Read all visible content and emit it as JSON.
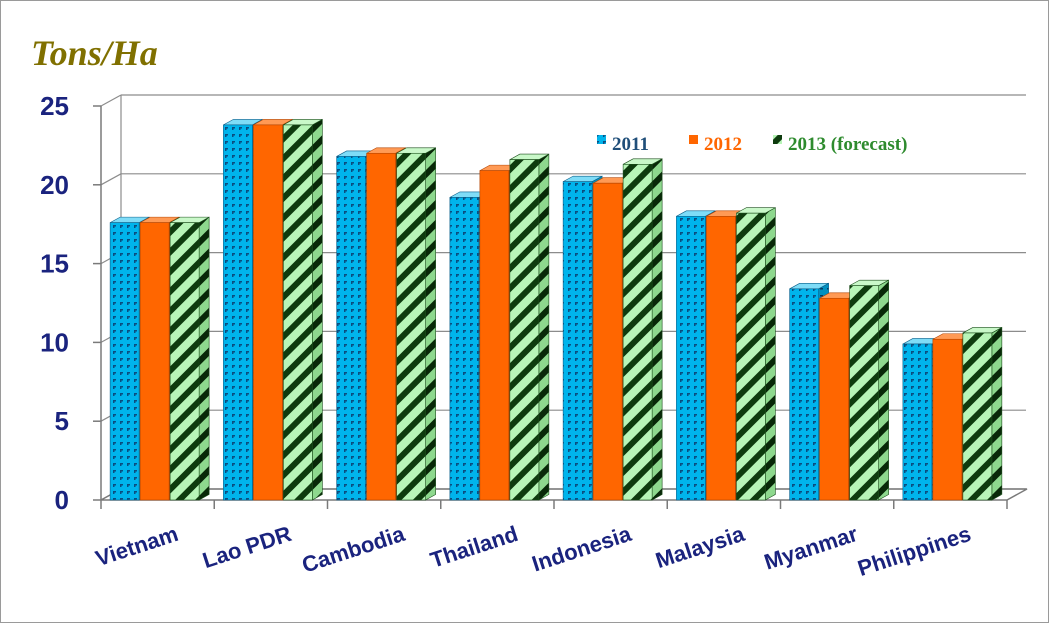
{
  "chart_data": {
    "type": "bar",
    "title": "",
    "ylabel": "Tons/Ha",
    "xlabel": "",
    "ylim": [
      0,
      25
    ],
    "yticks": [
      0,
      5,
      10,
      15,
      20,
      25
    ],
    "grid": true,
    "legend_position": "top-right",
    "categories": [
      "Vietnam",
      "Lao PDR",
      "Cambodia",
      "Thailand",
      "Indonesia",
      "Malaysia",
      "Myanmar",
      "Philippines"
    ],
    "series": [
      {
        "name": "2011",
        "values": [
          17.6,
          23.8,
          21.8,
          19.2,
          20.2,
          18.0,
          13.4,
          9.9
        ],
        "color": "#00b4ec",
        "pattern": "dotted-grid"
      },
      {
        "name": "2012",
        "values": [
          17.6,
          23.8,
          22.0,
          20.9,
          20.1,
          18.0,
          12.8,
          10.2
        ],
        "color": "#ff6600",
        "pattern": "solid"
      },
      {
        "name": "2013 (forecast)",
        "values": [
          17.6,
          23.8,
          22.0,
          21.6,
          21.3,
          18.2,
          13.6,
          10.6
        ],
        "color": "#b4f5b4",
        "pattern": "diagonal-stripes"
      }
    ],
    "legend_colors": {
      "2011": "#1f4e79",
      "2012": "#ff6600",
      "2013 (forecast)": "#2e8b2e"
    },
    "unit_label_color": "#807000",
    "axis_label_color": "#1a237e"
  }
}
